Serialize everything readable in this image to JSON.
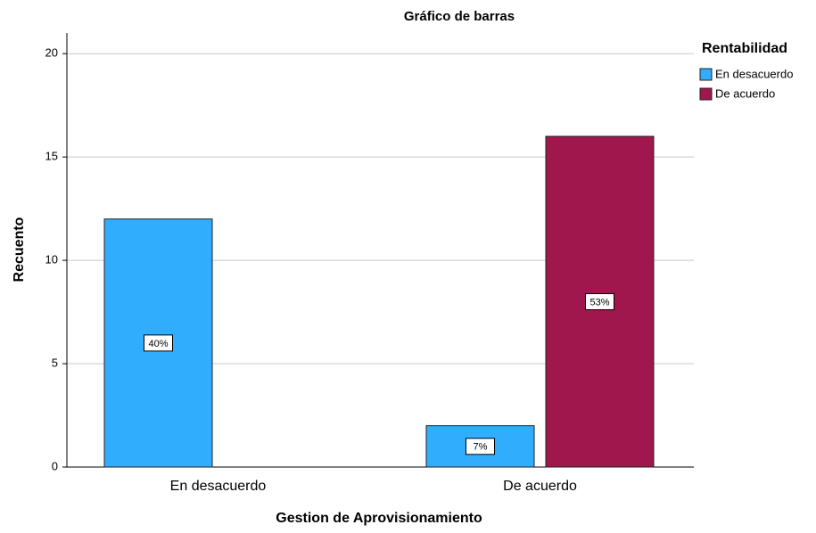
{
  "chart_data": {
    "type": "bar",
    "title": "Gráfico de barras",
    "x_label": "Gestion de Aprovisionamiento",
    "y_label": "Recuento",
    "legend_title": "Rentabilidad",
    "legend_position": "right",
    "categories": [
      "En desacuerdo",
      "De acuerdo"
    ],
    "series": [
      {
        "name": "En desacuerdo",
        "color": "#31adfd",
        "values": [
          12,
          2
        ],
        "percent_labels": [
          "40%",
          "7%"
        ]
      },
      {
        "name": "De acuerdo",
        "color": "#a0174e",
        "values": [
          null,
          16
        ],
        "percent_labels": [
          null,
          "53%"
        ]
      }
    ],
    "ylim": [
      0,
      21
    ],
    "yticks": [
      0,
      5,
      10,
      15,
      20
    ],
    "grid": true
  }
}
